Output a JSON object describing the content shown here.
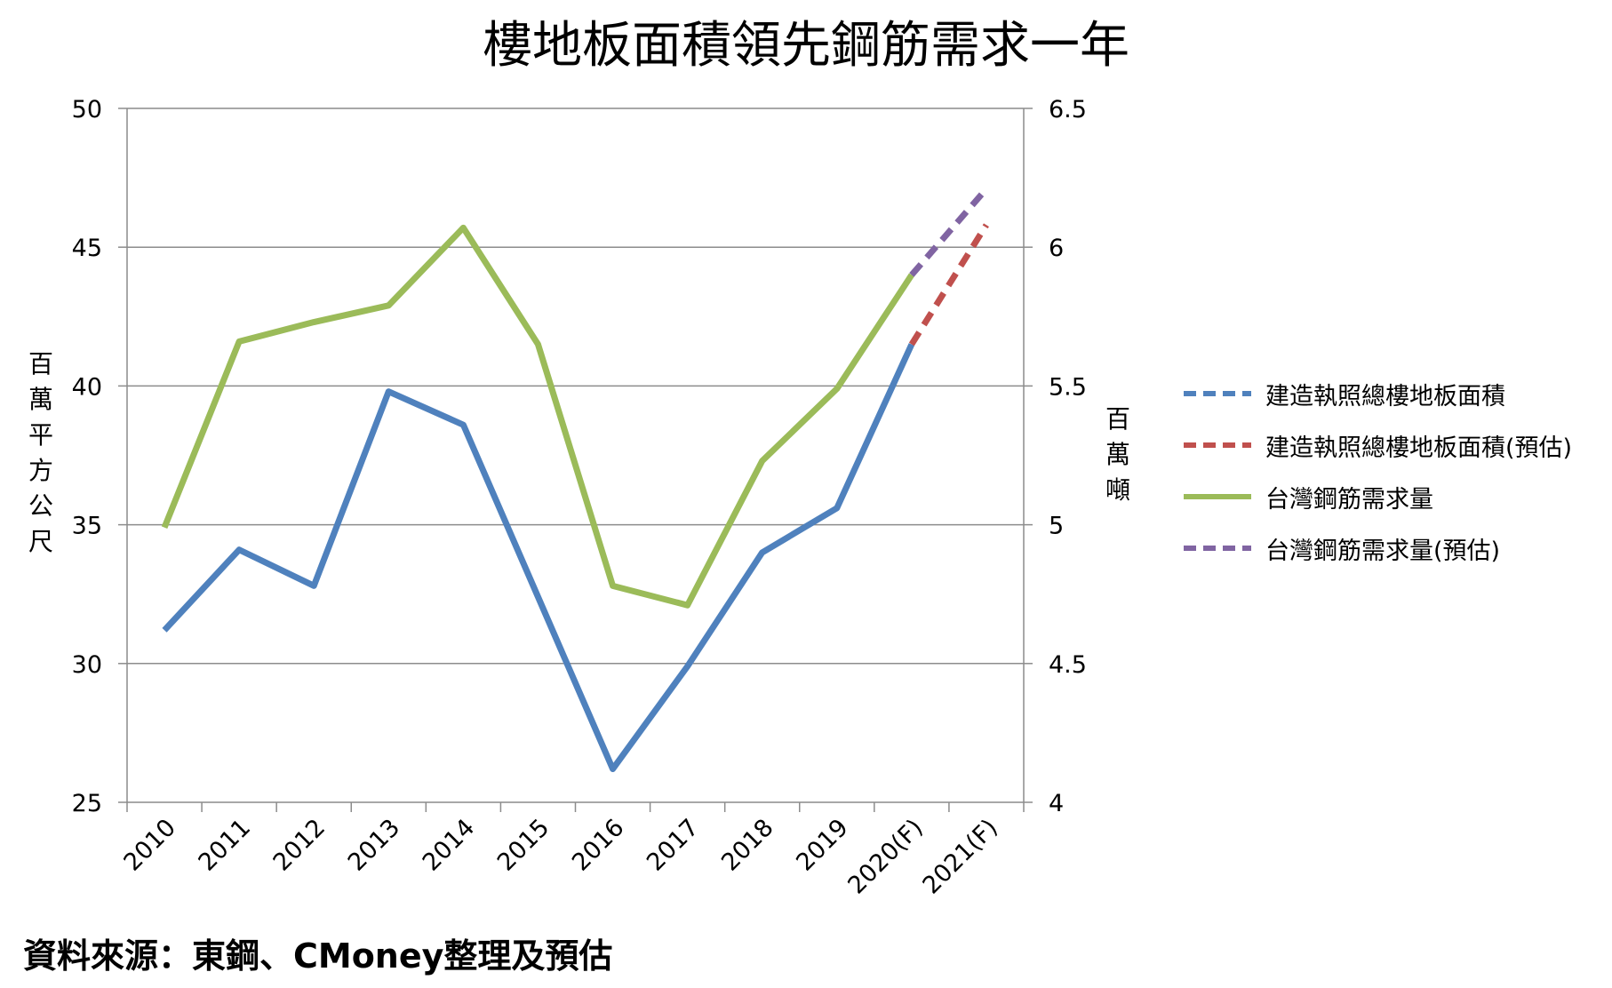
{
  "chart_data": {
    "type": "line",
    "title": "樓地板面積領先鋼筋需求一年",
    "categories": [
      "2010",
      "2011",
      "2012",
      "2013",
      "2014",
      "2015",
      "2016",
      "2017",
      "2018",
      "2019",
      "2020(F)",
      "2021(F)"
    ],
    "y_left": {
      "label": "百萬平方公尺",
      "range": [
        25,
        50
      ],
      "ticks": [
        "25",
        "30",
        "35",
        "40",
        "45",
        "50"
      ]
    },
    "y_right": {
      "label": "百萬噸",
      "range": [
        4,
        6.5
      ],
      "ticks": [
        "4",
        "4.5",
        "5",
        "5.5",
        "6",
        "6.5"
      ]
    },
    "grid": true,
    "legend_position": "right",
    "series": [
      {
        "name": "建造執照總樓地板面積",
        "axis": "left",
        "style": "solid",
        "color": "#4F81BD",
        "values": [
          31.2,
          34.1,
          32.8,
          39.8,
          38.6,
          32.4,
          26.2,
          29.9,
          34.0,
          35.6,
          41.5,
          null
        ]
      },
      {
        "name": "建造執照總樓地板面積(預估)",
        "axis": "left",
        "style": "dashed",
        "color": "#C0504D",
        "values": [
          null,
          null,
          null,
          null,
          null,
          null,
          null,
          null,
          null,
          null,
          41.5,
          45.8
        ]
      },
      {
        "name": "台灣鋼筋需求量",
        "axis": "right",
        "style": "solid",
        "color": "#9BBB59",
        "values": [
          4.99,
          5.66,
          5.73,
          5.79,
          6.07,
          5.65,
          4.78,
          4.71,
          5.23,
          5.49,
          5.9,
          null
        ]
      },
      {
        "name": "台灣鋼筋需求量(預估)",
        "axis": "right",
        "style": "dashed",
        "color": "#8064A2",
        "values": [
          null,
          null,
          null,
          null,
          null,
          null,
          null,
          null,
          null,
          null,
          5.9,
          6.21
        ]
      }
    ]
  },
  "source_note": "資料來源：東鋼、CMoney整理及預估"
}
